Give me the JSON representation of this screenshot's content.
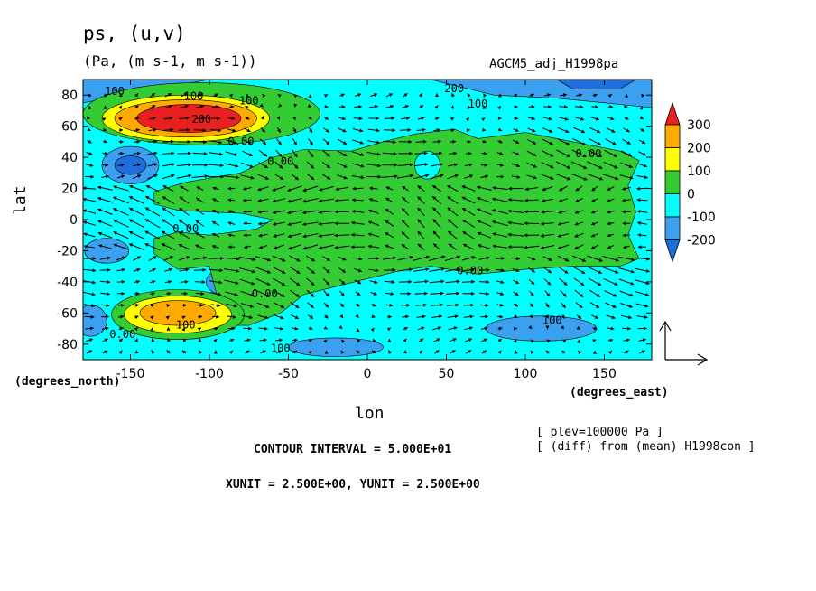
{
  "header": {
    "title": "ps, (u,v)",
    "units": "(Pa, (m s-1, m s-1))",
    "run": "AGCM5_adj_H1998pa"
  },
  "axes": {
    "ylabel": "lat",
    "ynote": "(degrees_north)",
    "xlabel": "lon",
    "xnote": "(degrees_east)"
  },
  "footer": {
    "plev": "[ plev=100000 Pa ]",
    "diff": "[ (diff) from (mean) H1998con ]",
    "contour_interval": "CONTOUR INTERVAL = 5.000E+01",
    "xyunit": "XUNIT = 2.500E+00, YUNIT = 2.500E+00"
  },
  "colors": {
    "below_neg200": "#1e6fdc",
    "neg200_neg100": "#3ca0f0",
    "neg100_0": "#00ffff",
    "0_100": "#33cc33",
    "100_200": "#ffff00",
    "200_300": "#ffaa00",
    "above_300": "#e82020"
  },
  "chart_data": {
    "type": "heatmap",
    "variable": "ps",
    "vectors": "(u,v)",
    "xlim": [
      -180,
      180
    ],
    "ylim": [
      -90,
      90
    ],
    "x_ticks": [
      -150,
      -100,
      -50,
      0,
      50,
      100,
      150
    ],
    "x_tick_labels": [
      "-150",
      "-100",
      "-50",
      "0",
      "50",
      "100",
      "150"
    ],
    "y_ticks": [
      -80,
      -60,
      -40,
      -20,
      0,
      20,
      40,
      60,
      80
    ],
    "y_tick_labels": [
      "-80",
      "-60",
      "-40",
      "-20",
      "0",
      "20",
      "40",
      "60",
      "80"
    ],
    "colorbar": {
      "levels": [
        -200,
        -100,
        0,
        100,
        200,
        300
      ],
      "labels": [
        "-200",
        "-100",
        "0",
        "100",
        "200",
        "300"
      ],
      "extend": "both"
    },
    "features": [
      {
        "kind": "max",
        "lon": -115,
        "lat": 65,
        "value": 300
      },
      {
        "kind": "max",
        "lon": -120,
        "lat": -60,
        "value": 250
      },
      {
        "kind": "min",
        "lon": -150,
        "lat": 35,
        "value": -150
      },
      {
        "kind": "min",
        "lon": -80,
        "lat": -40,
        "value": -150
      },
      {
        "kind": "min",
        "lon": 100,
        "lat": 80,
        "value": -250
      }
    ],
    "contour_labels": [
      {
        "lon": -160,
        "lat": 80,
        "text": "100"
      },
      {
        "lon": -110,
        "lat": 77,
        "text": "100"
      },
      {
        "lon": -75,
        "lat": 74,
        "text": "100"
      },
      {
        "lon": -105,
        "lat": 62,
        "text": "200"
      },
      {
        "lon": -80,
        "lat": 48,
        "text": "0.00"
      },
      {
        "lon": -55,
        "lat": 35,
        "text": "0.00"
      },
      {
        "lon": 55,
        "lat": 82,
        "text": "200"
      },
      {
        "lon": 70,
        "lat": 72,
        "text": "100"
      },
      {
        "lon": 140,
        "lat": 40,
        "text": "0.00"
      },
      {
        "lon": -115,
        "lat": -8,
        "text": "0.00"
      },
      {
        "lon": -65,
        "lat": -50,
        "text": "0.00"
      },
      {
        "lon": -115,
        "lat": -70,
        "text": "100"
      },
      {
        "lon": -155,
        "lat": -76,
        "text": "0.00"
      },
      {
        "lon": -55,
        "lat": -85,
        "text": "100"
      },
      {
        "lon": 65,
        "lat": -35,
        "text": "0.00"
      },
      {
        "lon": 117,
        "lat": -67,
        "text": "100"
      }
    ],
    "reference_vector": {
      "u": 2.5,
      "v": 2.5
    }
  }
}
